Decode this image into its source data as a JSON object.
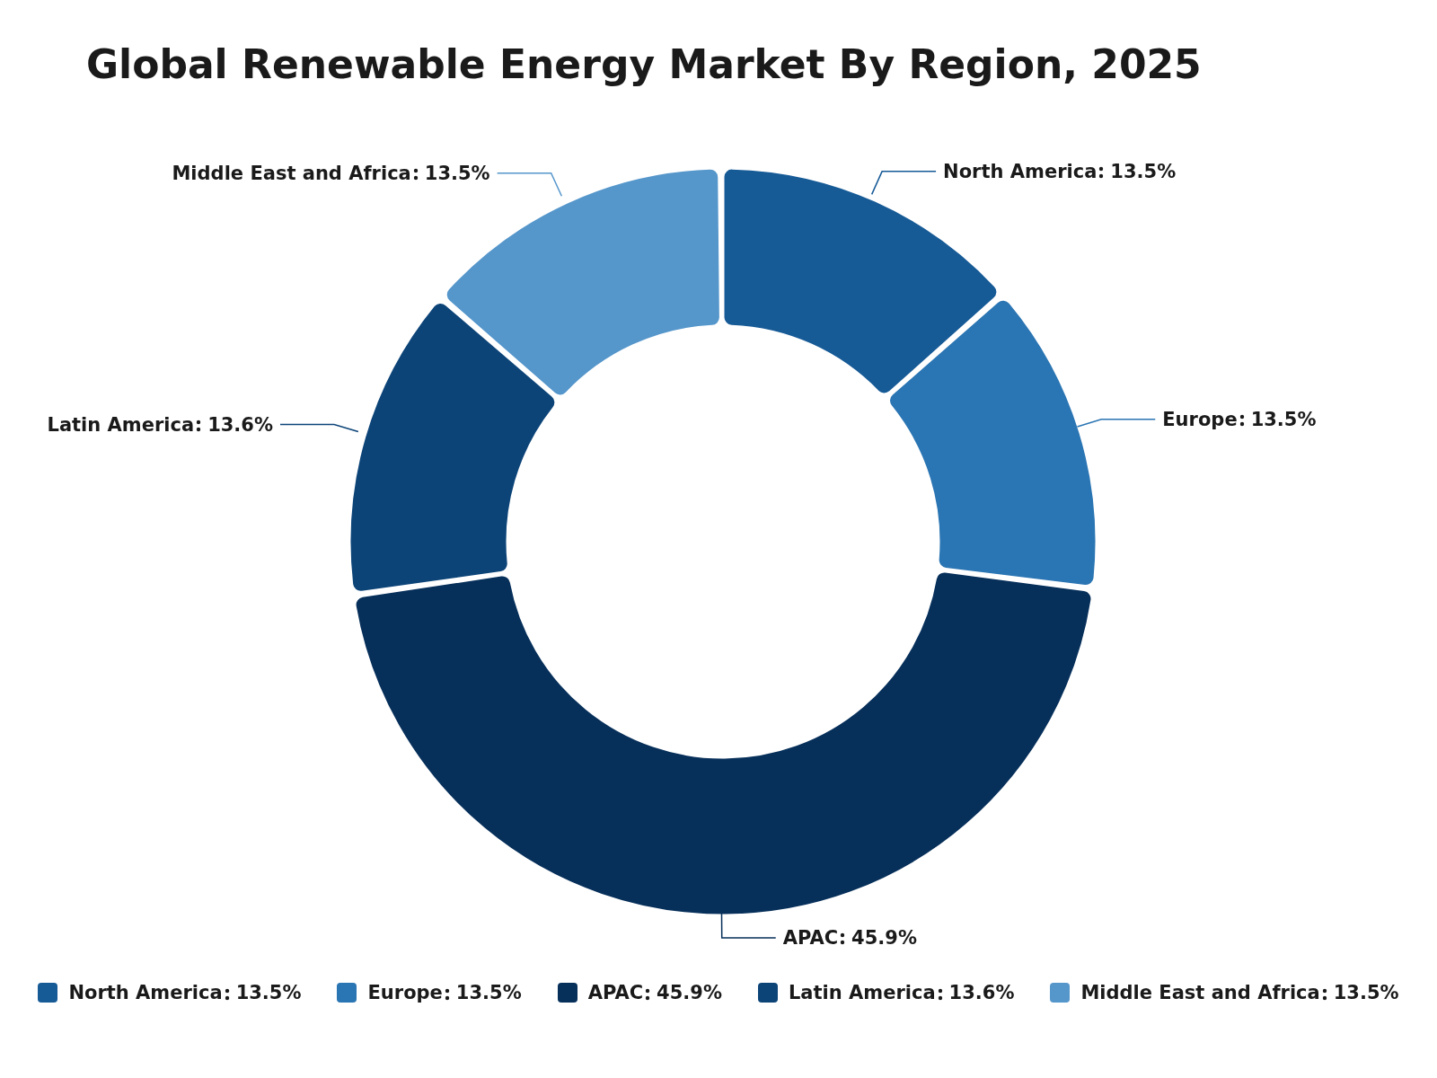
{
  "chart_data": {
    "type": "donut",
    "title": "Global Renewable Energy Market By Region, 2025",
    "categories": [
      "North America",
      "Europe",
      "APAC",
      "Latin America",
      "Middle East and Africa"
    ],
    "values": [
      13.5,
      13.5,
      45.9,
      13.6,
      13.5
    ],
    "colors": [
      "#165a96",
      "#2a75b3",
      "#062f5a",
      "#0c4478",
      "#5596cb"
    ],
    "value_labels": [
      "13.5%",
      "13.5%",
      "45.9%",
      "13.6%",
      "13.5%"
    ],
    "legend": "bottom"
  }
}
